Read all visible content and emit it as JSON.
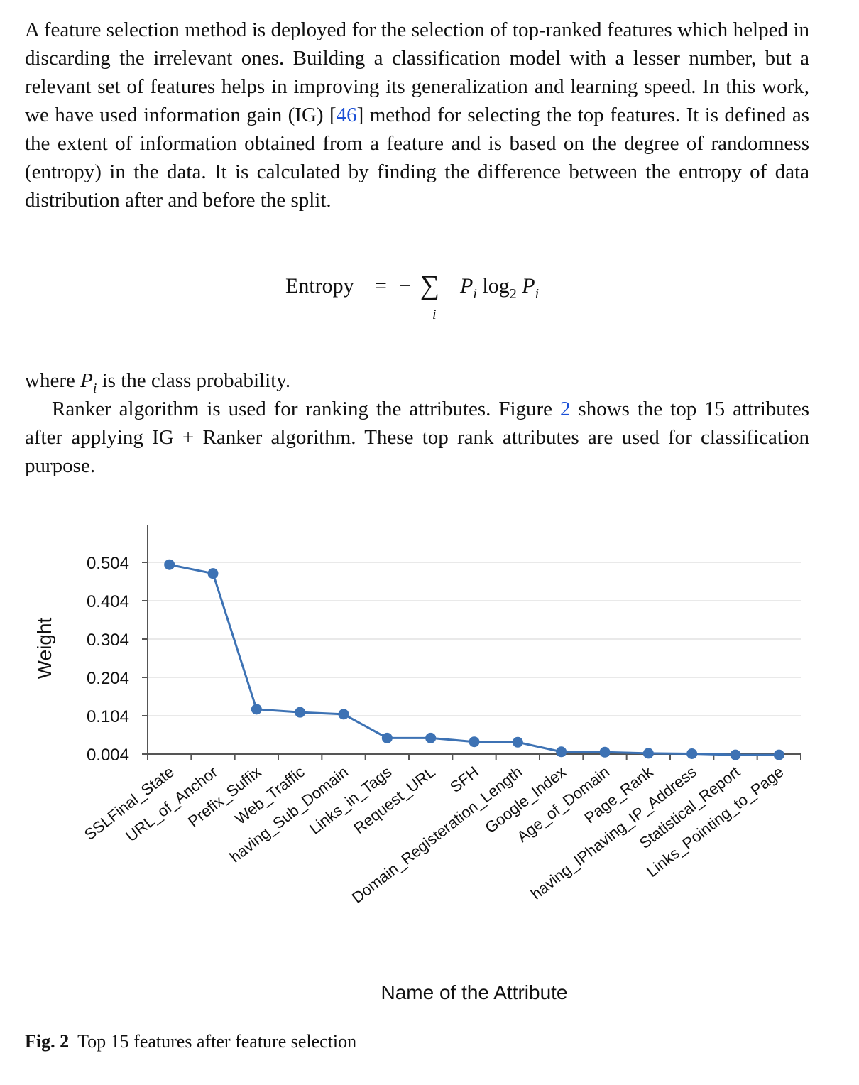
{
  "text": {
    "para1": "A feature selection method is deployed for the selection of top-ranked features which helped in discarding the irrelevant ones. Building a classification model with a lesser number, but a relevant set of features helps in improving its generalization and learning speed. In this work, we have used information gain (IG) [",
    "para1_ref": "46",
    "para1_rest": "] method for selecting the top features. It is defined as the extent of information obtained from a feature and is based on the degree of randomness (entropy) in the data. It is calculated by finding the difference between the entropy of data distribution after and before the split.",
    "para2_start": "where ",
    "para2_var": "P",
    "para2_sub": "i",
    "para2_end": " is the class probability.",
    "para3_start": "Ranker algorithm is used for ranking the attributes. Figure ",
    "para3_ref": "2",
    "para3_end": " shows the top 15 attributes after applying IG + Ranker algorithm. These top rank attributes are used for classification purpose."
  },
  "equation": {
    "lhs": "Entropy",
    "eq": "=",
    "minus": "−",
    "sigma": "∑",
    "sum_index": "i",
    "P": "P",
    "sub": "i",
    "log": "log",
    "log_base": "2"
  },
  "caption": {
    "label": "Fig. 2",
    "text": "Top 15 features after feature selection"
  },
  "chart_data": {
    "type": "line",
    "xlabel": "Name of the Attribute",
    "ylabel": "Weight",
    "categories": [
      "SSLFinal_State",
      "URL_of_Anchor",
      "Prefix_Suffix",
      "Web_Traffic",
      "having_Sub_Domain",
      "Links_in_Tags",
      "Request_URL",
      "SFH",
      "Domain_Registeration_Length",
      "Google_Index",
      "Age_of_Domain",
      "Page_Rank",
      "having_IPhaving_IP_Address",
      "Statistical_Report",
      "Links_Pointing_to_Page"
    ],
    "values": [
      0.498,
      0.475,
      0.121,
      0.113,
      0.108,
      0.046,
      0.046,
      0.036,
      0.035,
      0.01,
      0.009,
      0.006,
      0.005,
      0.002,
      0.002
    ],
    "yticks": [
      "0.004",
      "0.104",
      "0.204",
      "0.304",
      "0.404",
      "0.504"
    ],
    "ylim": [
      0.004,
      0.504
    ],
    "grid": true,
    "color": "#3d72b4"
  }
}
